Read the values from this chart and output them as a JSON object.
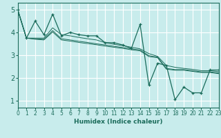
{
  "xlabel": "Humidex (Indice chaleur)",
  "ylabel": "",
  "xlim": [
    0,
    23
  ],
  "ylim": [
    0.7,
    5.3
  ],
  "yticks": [
    1,
    2,
    3,
    4,
    5
  ],
  "xticks": [
    0,
    1,
    2,
    3,
    4,
    5,
    6,
    7,
    8,
    9,
    10,
    11,
    12,
    13,
    14,
    15,
    16,
    17,
    18,
    19,
    20,
    21,
    22,
    23
  ],
  "background_color": "#c8ecec",
  "grid_color": "#ffffff",
  "line_color": "#1a6b5a",
  "main_series": [
    5.0,
    3.75,
    4.5,
    3.9,
    4.8,
    3.85,
    4.0,
    3.9,
    3.85,
    3.85,
    3.55,
    3.55,
    3.45,
    3.3,
    4.35,
    1.7,
    2.65,
    2.55,
    1.05,
    1.6,
    1.35,
    1.35,
    2.35,
    2.35
  ],
  "trend_lines": [
    [
      5.0,
      3.75,
      3.75,
      3.75,
      4.2,
      3.9,
      3.85,
      3.78,
      3.72,
      3.67,
      3.55,
      3.48,
      3.42,
      3.35,
      3.28,
      3.07,
      2.95,
      2.55,
      2.47,
      2.42,
      2.38,
      2.32,
      2.32,
      2.28
    ],
    [
      5.0,
      3.75,
      3.72,
      3.7,
      4.08,
      3.72,
      3.67,
      3.61,
      3.56,
      3.5,
      3.45,
      3.39,
      3.34,
      3.28,
      3.23,
      2.98,
      2.92,
      2.42,
      2.37,
      2.37,
      2.32,
      2.27,
      2.27,
      2.22
    ],
    [
      5.0,
      3.75,
      3.7,
      3.67,
      4.02,
      3.67,
      3.62,
      3.56,
      3.51,
      3.46,
      3.4,
      3.35,
      3.3,
      3.24,
      3.19,
      2.94,
      2.89,
      2.39,
      2.34,
      2.34,
      2.29,
      2.24,
      2.24,
      2.19
    ]
  ]
}
